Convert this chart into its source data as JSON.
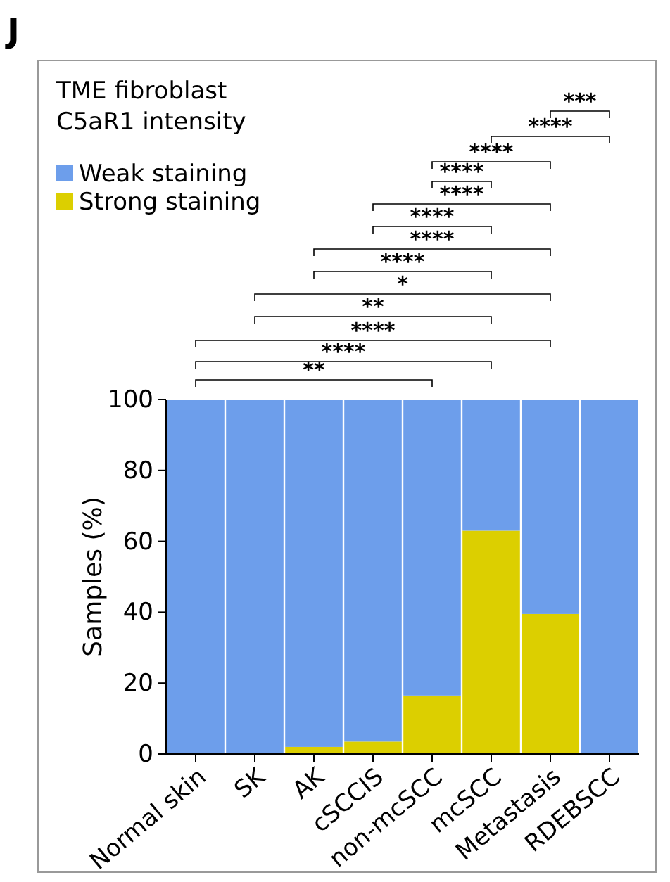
{
  "chart_data": {
    "type": "bar",
    "stacked": true,
    "title": "TME fibroblast C5aR1 intensity",
    "ylabel": "Samples (%)",
    "categories": [
      "Normal skin",
      "SK",
      "AK",
      "cSCCIS",
      "non-mcSCC",
      "mcSCC",
      "Metastasis",
      "RDEBSCC"
    ],
    "series": [
      {
        "name": "Strong staining",
        "color": "#dccf00",
        "values": [
          0,
          0,
          2,
          3.5,
          16.5,
          63,
          39.5,
          0
        ]
      },
      {
        "name": "Weak staining",
        "color": "#6d9eeb",
        "values": [
          100,
          100,
          98,
          96.5,
          83.5,
          37,
          60.5,
          100
        ]
      }
    ],
    "ylim": [
      0,
      100
    ],
    "yticks": [
      0,
      20,
      40,
      60,
      80,
      100
    ],
    "grid": false,
    "legend": "top left",
    "annotations": [
      "J",
      "**",
      "****",
      "****",
      "**",
      "*",
      "****",
      "****",
      "****",
      "****",
      "****",
      "****",
      "****",
      "***"
    ]
  }
}
